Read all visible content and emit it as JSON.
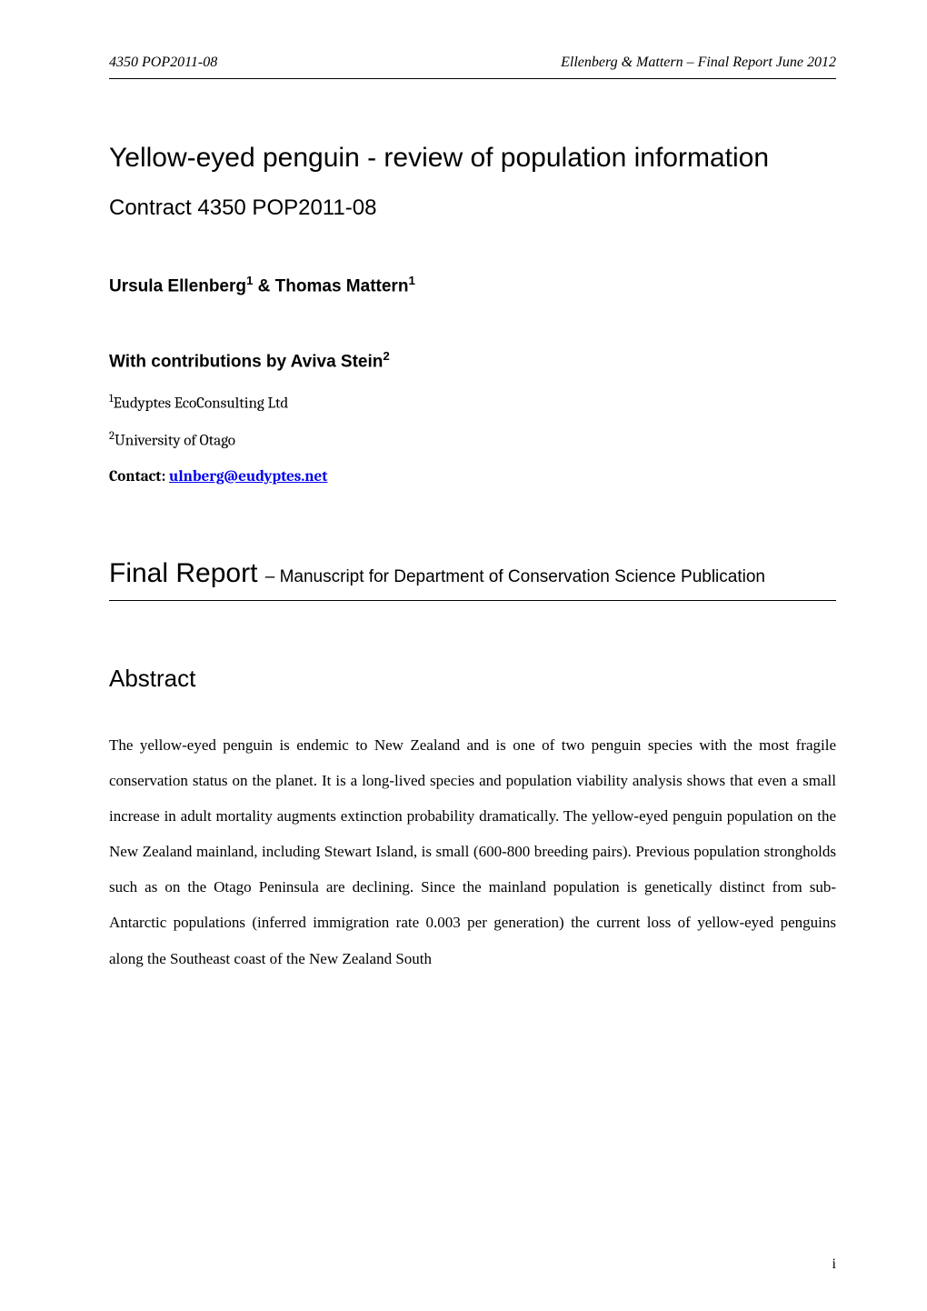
{
  "header": {
    "left": "4350 POP2011-08",
    "right": "Ellenberg & Mattern – Final Report June 2012"
  },
  "title": {
    "main": "Yellow-eyed penguin - review of population information",
    "contract": "Contract 4350 POP2011-08"
  },
  "authors": {
    "line_prefix": "Ursula Ellenberg",
    "sup1": "1",
    "line_mid": " & Thomas Mattern",
    "sup2": "1"
  },
  "contributions": {
    "prefix": "With contributions by Aviva Stein",
    "sup": "2"
  },
  "affiliations": {
    "a1_sup": "1",
    "a1_text": "Eudyptes EcoConsulting Ltd",
    "a2_sup": "2",
    "a2_text": "University of Otago"
  },
  "contact": {
    "label": "Contact: ",
    "email": "ulnberg@eudyptes.net"
  },
  "final_report": {
    "big": "Final Report ",
    "rest": "– Manuscript for Department of Conservation Science Publication"
  },
  "abstract": {
    "heading": "Abstract",
    "body": "The yellow-eyed penguin is endemic to New Zealand and is one of two penguin species with the most fragile conservation status on the planet. It is a long-lived species and population viability analysis shows that even a small increase in adult mortality augments extinction probability dramatically. The yellow-eyed penguin population on the New Zealand mainland, including Stewart Island, is small (600-800 breeding pairs). Previous population strongholds such as on the Otago Peninsula are declining. Since the mainland population is genetically distinct from sub-Antarctic populations (inferred immigration rate 0.003 per generation) the current loss of yellow-eyed penguins along the Southeast coast of the New Zealand South"
  },
  "page_number": "i",
  "colors": {
    "text": "#000000",
    "link": "#0000ee",
    "background": "#ffffff",
    "rule": "#000000"
  },
  "fonts": {
    "serif": "Times New Roman",
    "sans": "Arial",
    "alt_serif": "Cambria"
  }
}
